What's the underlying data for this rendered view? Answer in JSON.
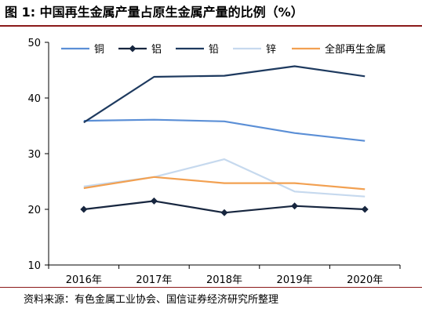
{
  "title": "图 1:  中国再生金属产量占原生金属产量的比例（%）",
  "source": "资料来源：有色金属工业协会、国信证券经济研究所整理",
  "chart_data": {
    "type": "line",
    "x": [
      "2016年",
      "2017年",
      "2018年",
      "2019年",
      "2020年"
    ],
    "ylim": [
      10,
      50
    ],
    "yticks": [
      10,
      20,
      30,
      40,
      50
    ],
    "grid": false,
    "legend_position": "top",
    "series": [
      {
        "name": "铜",
        "color": "#5b8fd6",
        "marker": "none",
        "values": [
          35.9,
          36.1,
          35.8,
          33.7,
          32.3
        ]
      },
      {
        "name": "铝",
        "color": "#17263f",
        "marker": "diamond",
        "values": [
          20.0,
          21.5,
          19.4,
          20.6,
          20.0
        ]
      },
      {
        "name": "铅",
        "color": "#1e3a5f",
        "marker": "none",
        "values": [
          35.6,
          43.8,
          44.0,
          45.7,
          43.9
        ]
      },
      {
        "name": "锌",
        "color": "#c6d9ee",
        "marker": "none",
        "values": [
          24.1,
          25.8,
          29.0,
          23.2,
          22.3
        ]
      },
      {
        "name": "全部再生金属",
        "color": "#f2a051",
        "marker": "none",
        "values": [
          23.8,
          25.8,
          24.7,
          24.7,
          23.6
        ]
      }
    ]
  }
}
